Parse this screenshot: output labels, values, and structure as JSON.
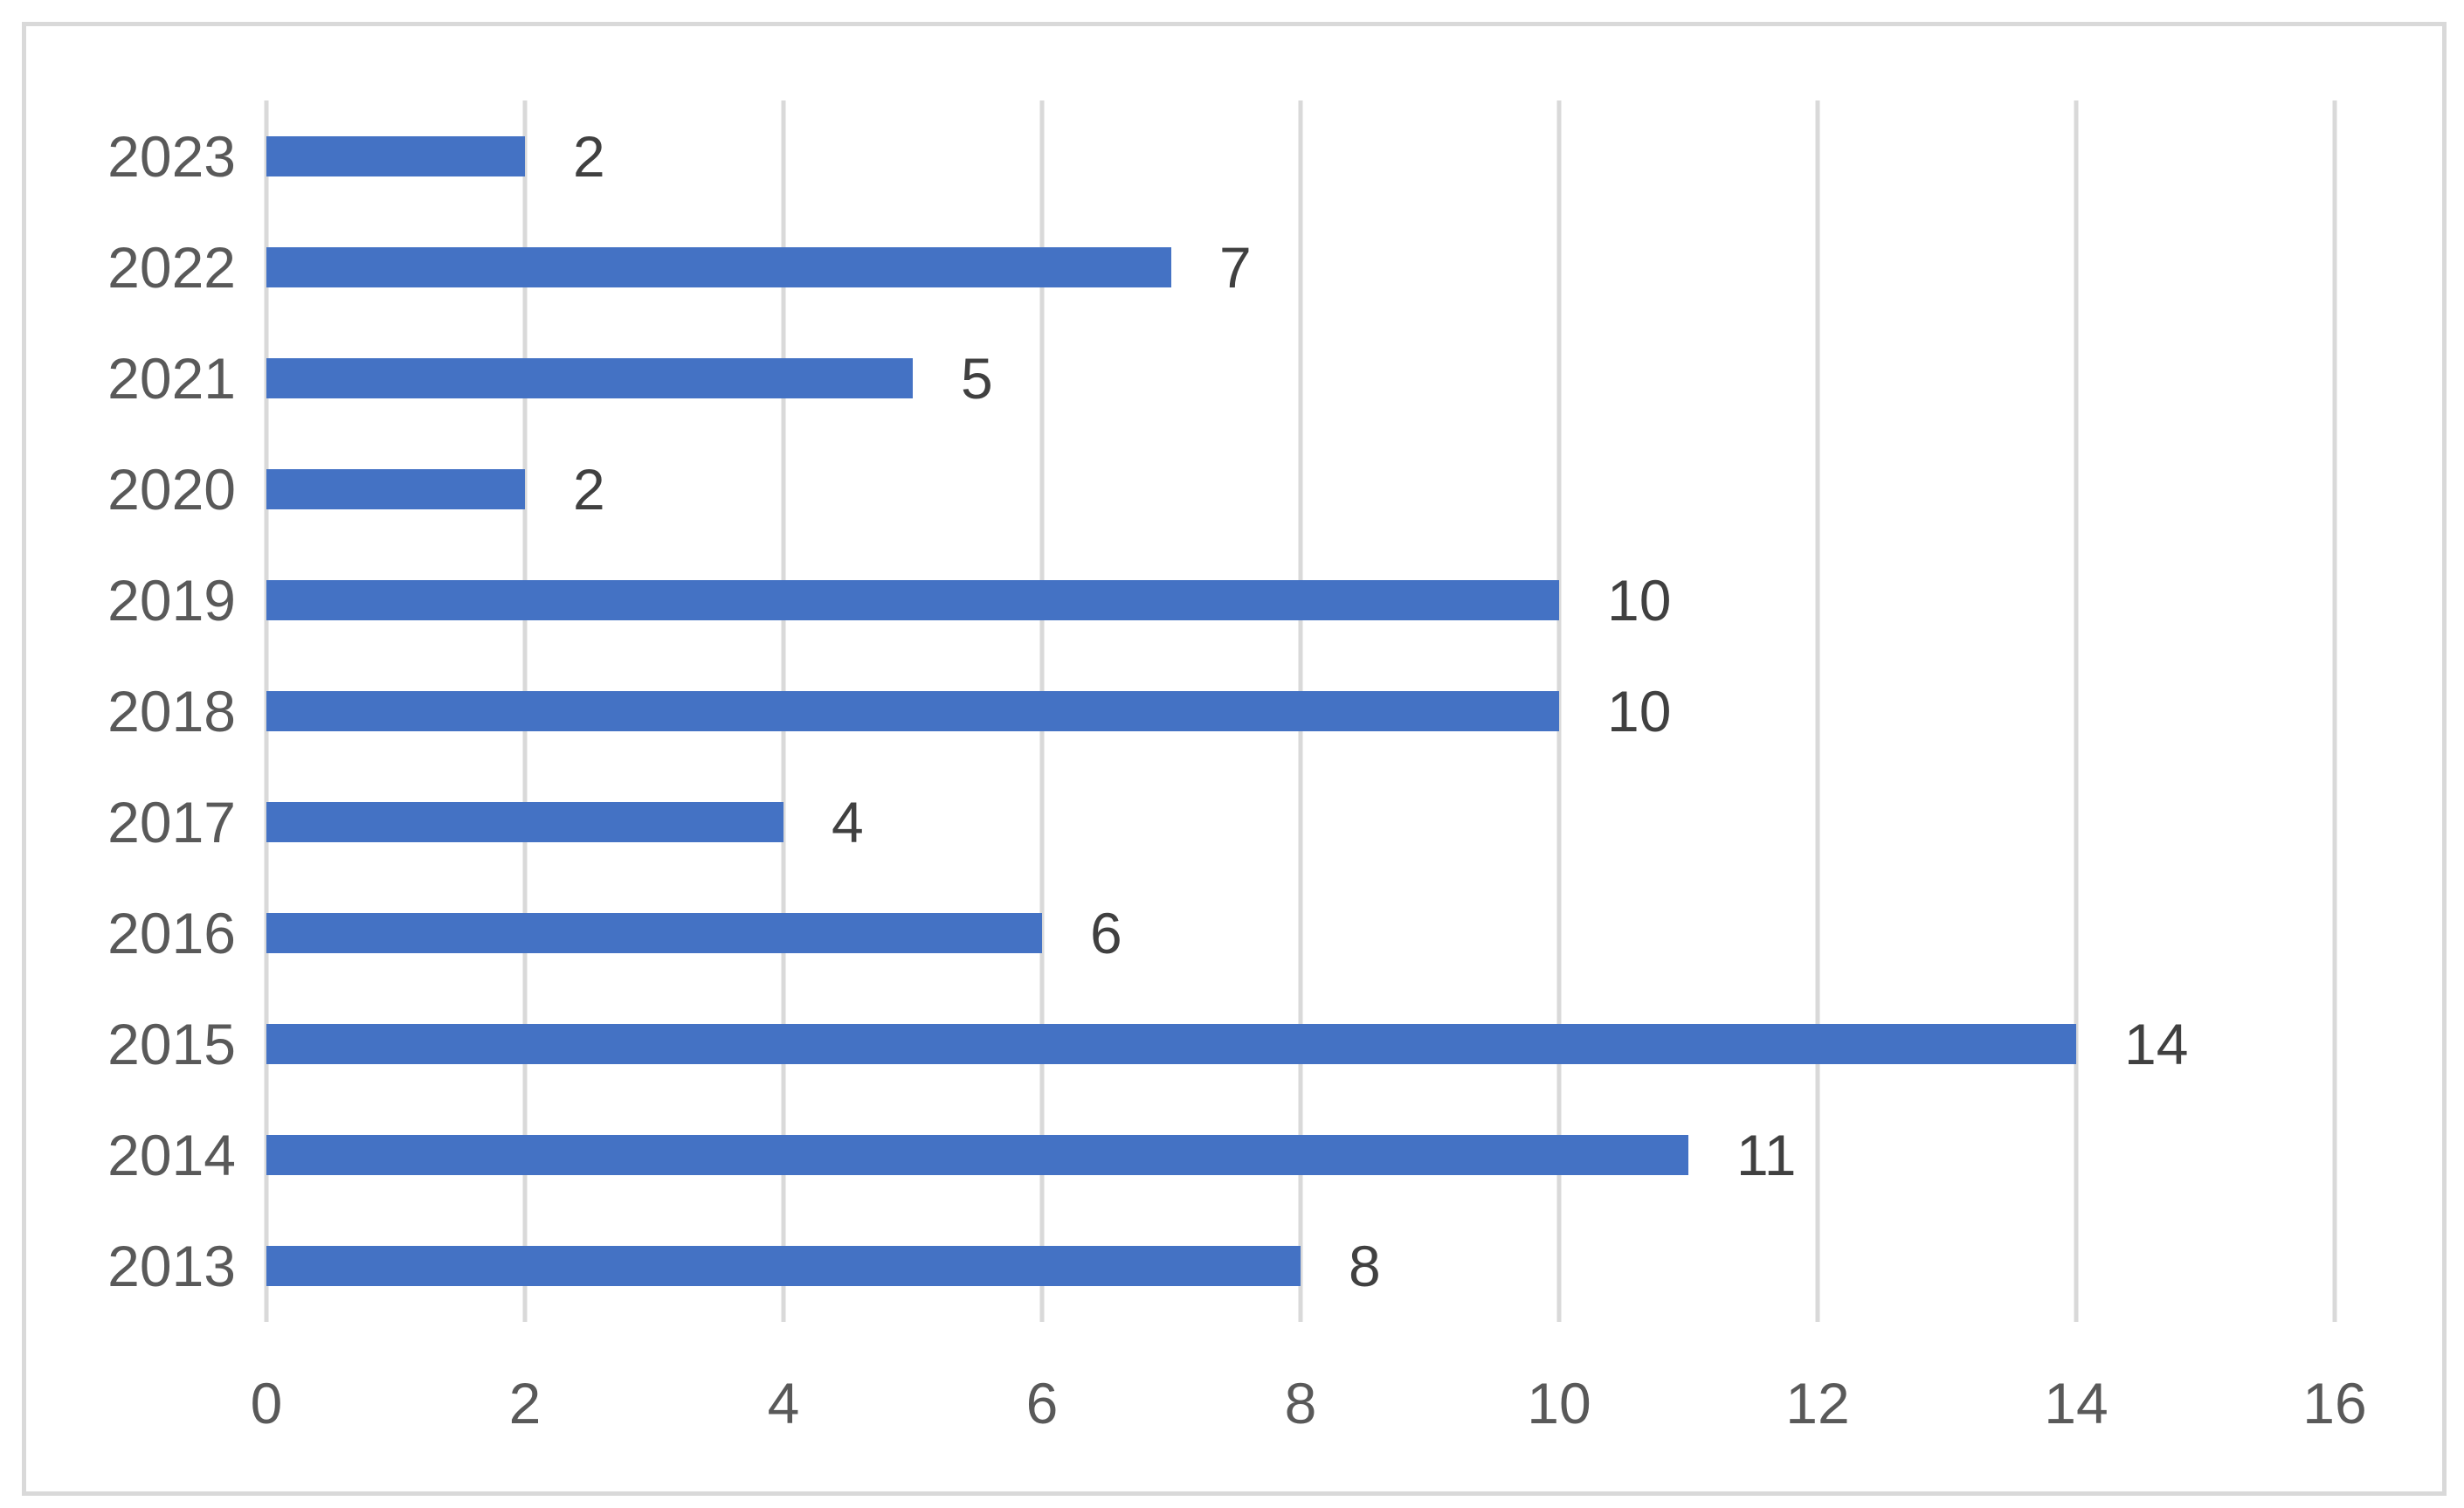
{
  "chart_data": {
    "type": "bar",
    "orientation": "horizontal",
    "title": "",
    "xlabel": "",
    "ylabel": "",
    "categories": [
      "2023",
      "2022",
      "2021",
      "2020",
      "2019",
      "2018",
      "2017",
      "2016",
      "2015",
      "2014",
      "2013"
    ],
    "values": [
      2,
      7,
      5,
      2,
      10,
      10,
      4,
      6,
      14,
      11,
      8
    ],
    "data_labels": [
      "2",
      "7",
      "5",
      "2",
      "10",
      "10",
      "4",
      "6",
      "14",
      "11",
      "8"
    ],
    "x_ticks": [
      "0",
      "2",
      "4",
      "6",
      "8",
      "10",
      "12",
      "14",
      "16"
    ],
    "x_tick_values": [
      0,
      2,
      4,
      6,
      8,
      10,
      12,
      14,
      16
    ],
    "xlim": [
      0,
      16
    ],
    "grid": "vertical",
    "legend": "none",
    "colors": {
      "bar": "#4472C4",
      "gridline": "#D9D9D9",
      "frame_border": "#D9D9D9",
      "background": "#FFFFFF",
      "axis_label": "#595959",
      "data_label": "#404040"
    }
  }
}
